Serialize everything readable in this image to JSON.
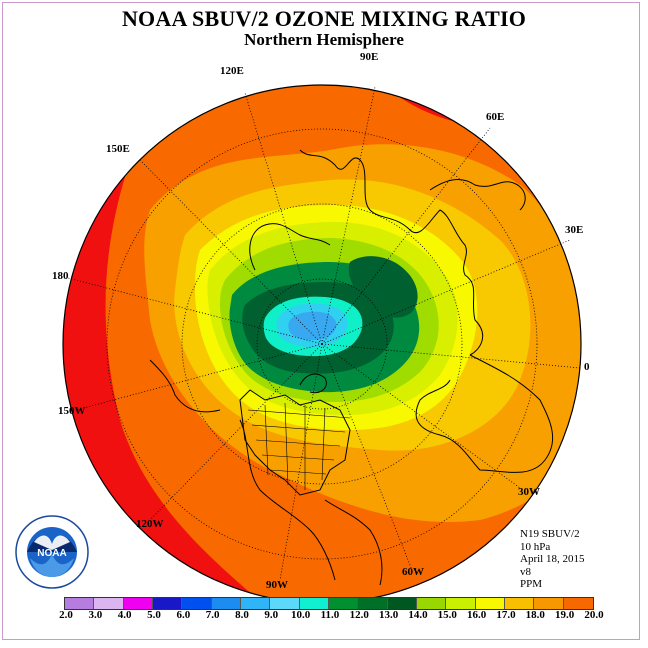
{
  "title": "NOAA SBUV/2 OZONE MIXING RATIO",
  "subtitle": "Northern Hemisphere",
  "longitude_labels": {
    "lon_90e": "90E",
    "lon_120e": "120E",
    "lon_60e": "60E",
    "lon_150e": "150E",
    "lon_30e": "30E",
    "lon_180": "180",
    "lon_0": "0",
    "lon_150w": "150W",
    "lon_30w": "30W",
    "lon_120w": "120W",
    "lon_60w": "60W",
    "lon_90w": "90W"
  },
  "info": {
    "satellite": "N19 SBUV/2",
    "level": "10 hPa",
    "date": "April 18, 2015",
    "version": "v8",
    "units": "PPM"
  },
  "colorbar": {
    "labels": [
      "2.0",
      "3.0",
      "4.0",
      "5.0",
      "6.0",
      "7.0",
      "8.0",
      "9.0",
      "10.0",
      "11.0",
      "12.0",
      "13.0",
      "14.0",
      "15.0",
      "16.0",
      "17.0",
      "18.0",
      "19.0",
      "20.0"
    ],
    "colors": [
      "#b57de0",
      "#dcb4f0",
      "#f000f0",
      "#1818c8",
      "#0050f0",
      "#1c8cf0",
      "#30b4f8",
      "#5cd8f8",
      "#10f0d0",
      "#009030",
      "#007028",
      "#005820",
      "#98d800",
      "#c8f000",
      "#f8f800",
      "#f8c000",
      "#f89800",
      "#f86800",
      "#f00000",
      "#d01818",
      "#8c5028"
    ],
    "field_colors": {
      "hex_110": "#006030",
      "hex_105": "#008a40",
      "hex_100": "#10f0c8",
      "hex_90": "#30d0f0",
      "hex_80": "#38a8f0",
      "hex_130": "#a0dc00",
      "hex_140": "#d8f000",
      "hex_150": "#f8f800",
      "hex_160": "#f8c800",
      "hex_170": "#f8a000",
      "hex_180": "#f86a00",
      "hex_190": "#f01010"
    }
  },
  "logo": {
    "text": "NOAA",
    "ring_text": "NATIONAL OCEANIC AND ATMOSPHERIC ADMINISTRATION · U.S. DEPARTMENT OF COMMERCE"
  }
}
